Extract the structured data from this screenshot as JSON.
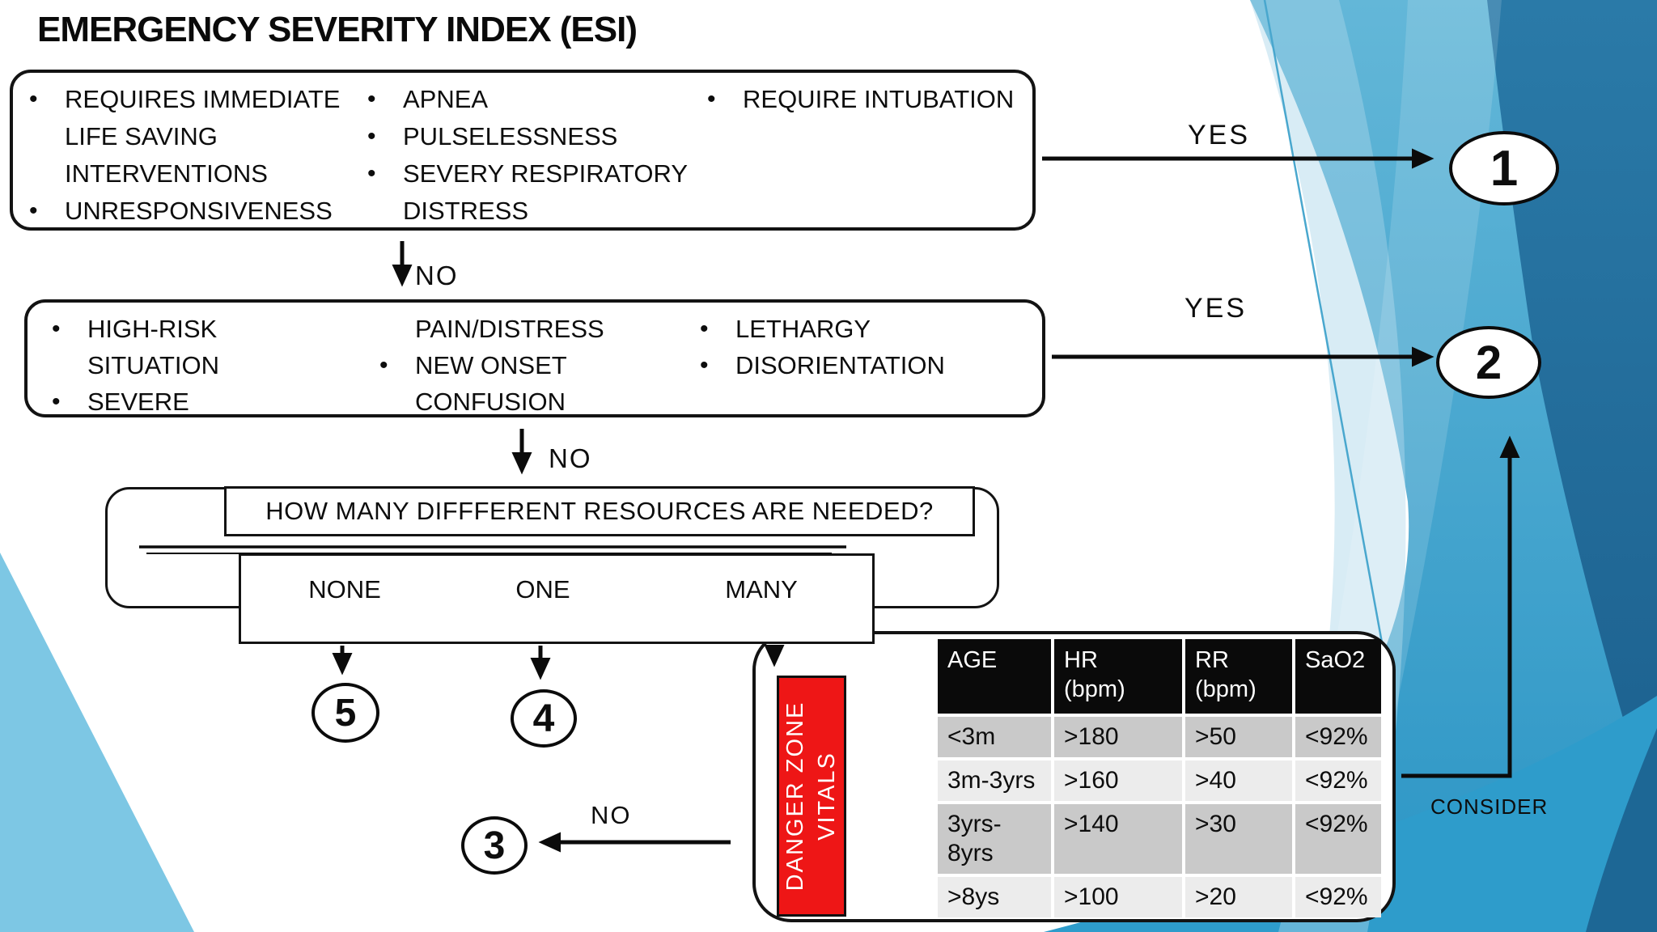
{
  "title": "EMERGENCY SEVERITY INDEX (ESI)",
  "colors": {
    "accent_teal": "#3FA3CC",
    "accent_dark_blue": "#20699A",
    "accent_light_blue": "#7DC7E4",
    "danger_red": "#EE1616",
    "table_header_bg": "#0A0A0A",
    "table_row_gray": "#C9C9C9",
    "table_row_light": "#ECECEC"
  },
  "decision1": {
    "col1": [
      {
        "bullet": true,
        "text": "REQUIRES IMMEDIATE"
      },
      {
        "bullet": false,
        "text": "LIFE SAVING"
      },
      {
        "bullet": false,
        "text": "INTERVENTIONS"
      },
      {
        "bullet": true,
        "text": "UNRESPONSIVENESS"
      }
    ],
    "col2": [
      {
        "bullet": true,
        "text": "APNEA"
      },
      {
        "bullet": true,
        "text": "PULSELESSNESS"
      },
      {
        "bullet": true,
        "text": "SEVERY RESPIRATORY"
      },
      {
        "bullet": false,
        "text": "DISTRESS"
      }
    ],
    "col3": [
      {
        "bullet": true,
        "text": "REQUIRE INTUBATION"
      }
    ]
  },
  "decision2": {
    "col1": [
      {
        "bullet": true,
        "text": "HIGH-RISK"
      },
      {
        "bullet": false,
        "text": "SITUATION"
      },
      {
        "bullet": true,
        "text": "SEVERE"
      }
    ],
    "col2": [
      {
        "bullet": false,
        "text": "PAIN/DISTRESS"
      },
      {
        "bullet": true,
        "text": "NEW ONSET"
      },
      {
        "bullet": false,
        "text": "CONFUSION"
      }
    ],
    "col3": [
      {
        "bullet": true,
        "text": "LETHARGY"
      },
      {
        "bullet": true,
        "text": "DISORIENTATION"
      }
    ]
  },
  "labels": {
    "yes1": "YES",
    "yes2": "YES",
    "no1": "NO",
    "no2": "NO",
    "no3": "NO",
    "consider": "CONSIDER"
  },
  "resources": {
    "question": "HOW MANY DIFFFERENT RESOURCES ARE NEEDED?",
    "options": [
      "NONE",
      "ONE",
      "MANY"
    ]
  },
  "esi_levels": {
    "level1": "1",
    "level2": "2",
    "level3": "3",
    "level4": "4",
    "level5": "5"
  },
  "danger": {
    "line1": "DANGER ZONE",
    "line2": "VITALS"
  },
  "vitals_table": {
    "type": "table",
    "headers": [
      "AGE",
      "HR\n(bpm)",
      "RR\n(bpm)",
      "SaO2"
    ],
    "rows": [
      [
        "<3m",
        ">180",
        ">50",
        "<92%"
      ],
      [
        "3m-3yrs",
        ">160",
        ">40",
        "<92%"
      ],
      [
        "3yrs-\n8yrs",
        ">140",
        ">30",
        "<92%"
      ],
      [
        ">8ys",
        ">100",
        ">20",
        "<92%"
      ]
    ]
  }
}
